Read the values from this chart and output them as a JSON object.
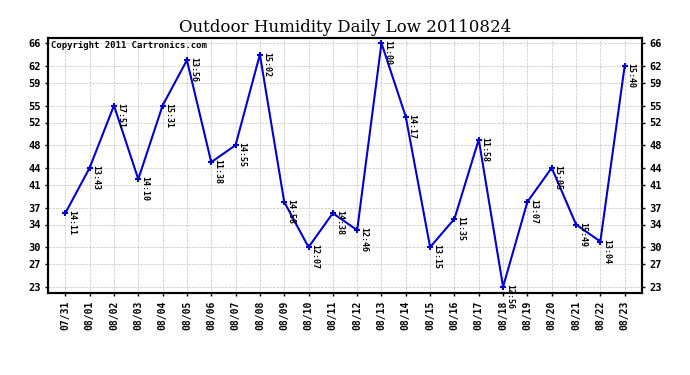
{
  "title": "Outdoor Humidity Daily Low 20110824",
  "copyright": "Copyright 2011 Cartronics.com",
  "line_color": "#0000cc",
  "background_color": "#ffffff",
  "plot_bg_color": "#ffffff",
  "grid_color": "#b0b0b0",
  "x_labels": [
    "07/31",
    "08/01",
    "08/02",
    "08/03",
    "08/04",
    "08/05",
    "08/06",
    "08/07",
    "08/08",
    "08/09",
    "08/10",
    "08/11",
    "08/12",
    "08/13",
    "08/14",
    "08/15",
    "08/16",
    "08/17",
    "08/18",
    "08/19",
    "08/20",
    "08/21",
    "08/22",
    "08/23"
  ],
  "y_values": [
    36,
    44,
    55,
    42,
    55,
    63,
    45,
    48,
    64,
    38,
    30,
    36,
    33,
    66,
    53,
    30,
    35,
    49,
    23,
    38,
    44,
    34,
    31,
    62
  ],
  "point_labels": [
    "14:11",
    "13:43",
    "17:51",
    "14:10",
    "15:31",
    "13:56",
    "11:38",
    "14:55",
    "15:02",
    "14:58",
    "12:07",
    "14:38",
    "12:46",
    "11:00",
    "14:17",
    "13:15",
    "11:35",
    "11:58",
    "12:56",
    "13:07",
    "15:05",
    "15:49",
    "13:04",
    "15:40"
  ],
  "ylim_min": 22,
  "ylim_max": 67,
  "yticks": [
    23,
    27,
    30,
    34,
    37,
    41,
    44,
    48,
    52,
    55,
    59,
    62,
    66
  ],
  "linewidth": 1.5,
  "marker_size": 5
}
